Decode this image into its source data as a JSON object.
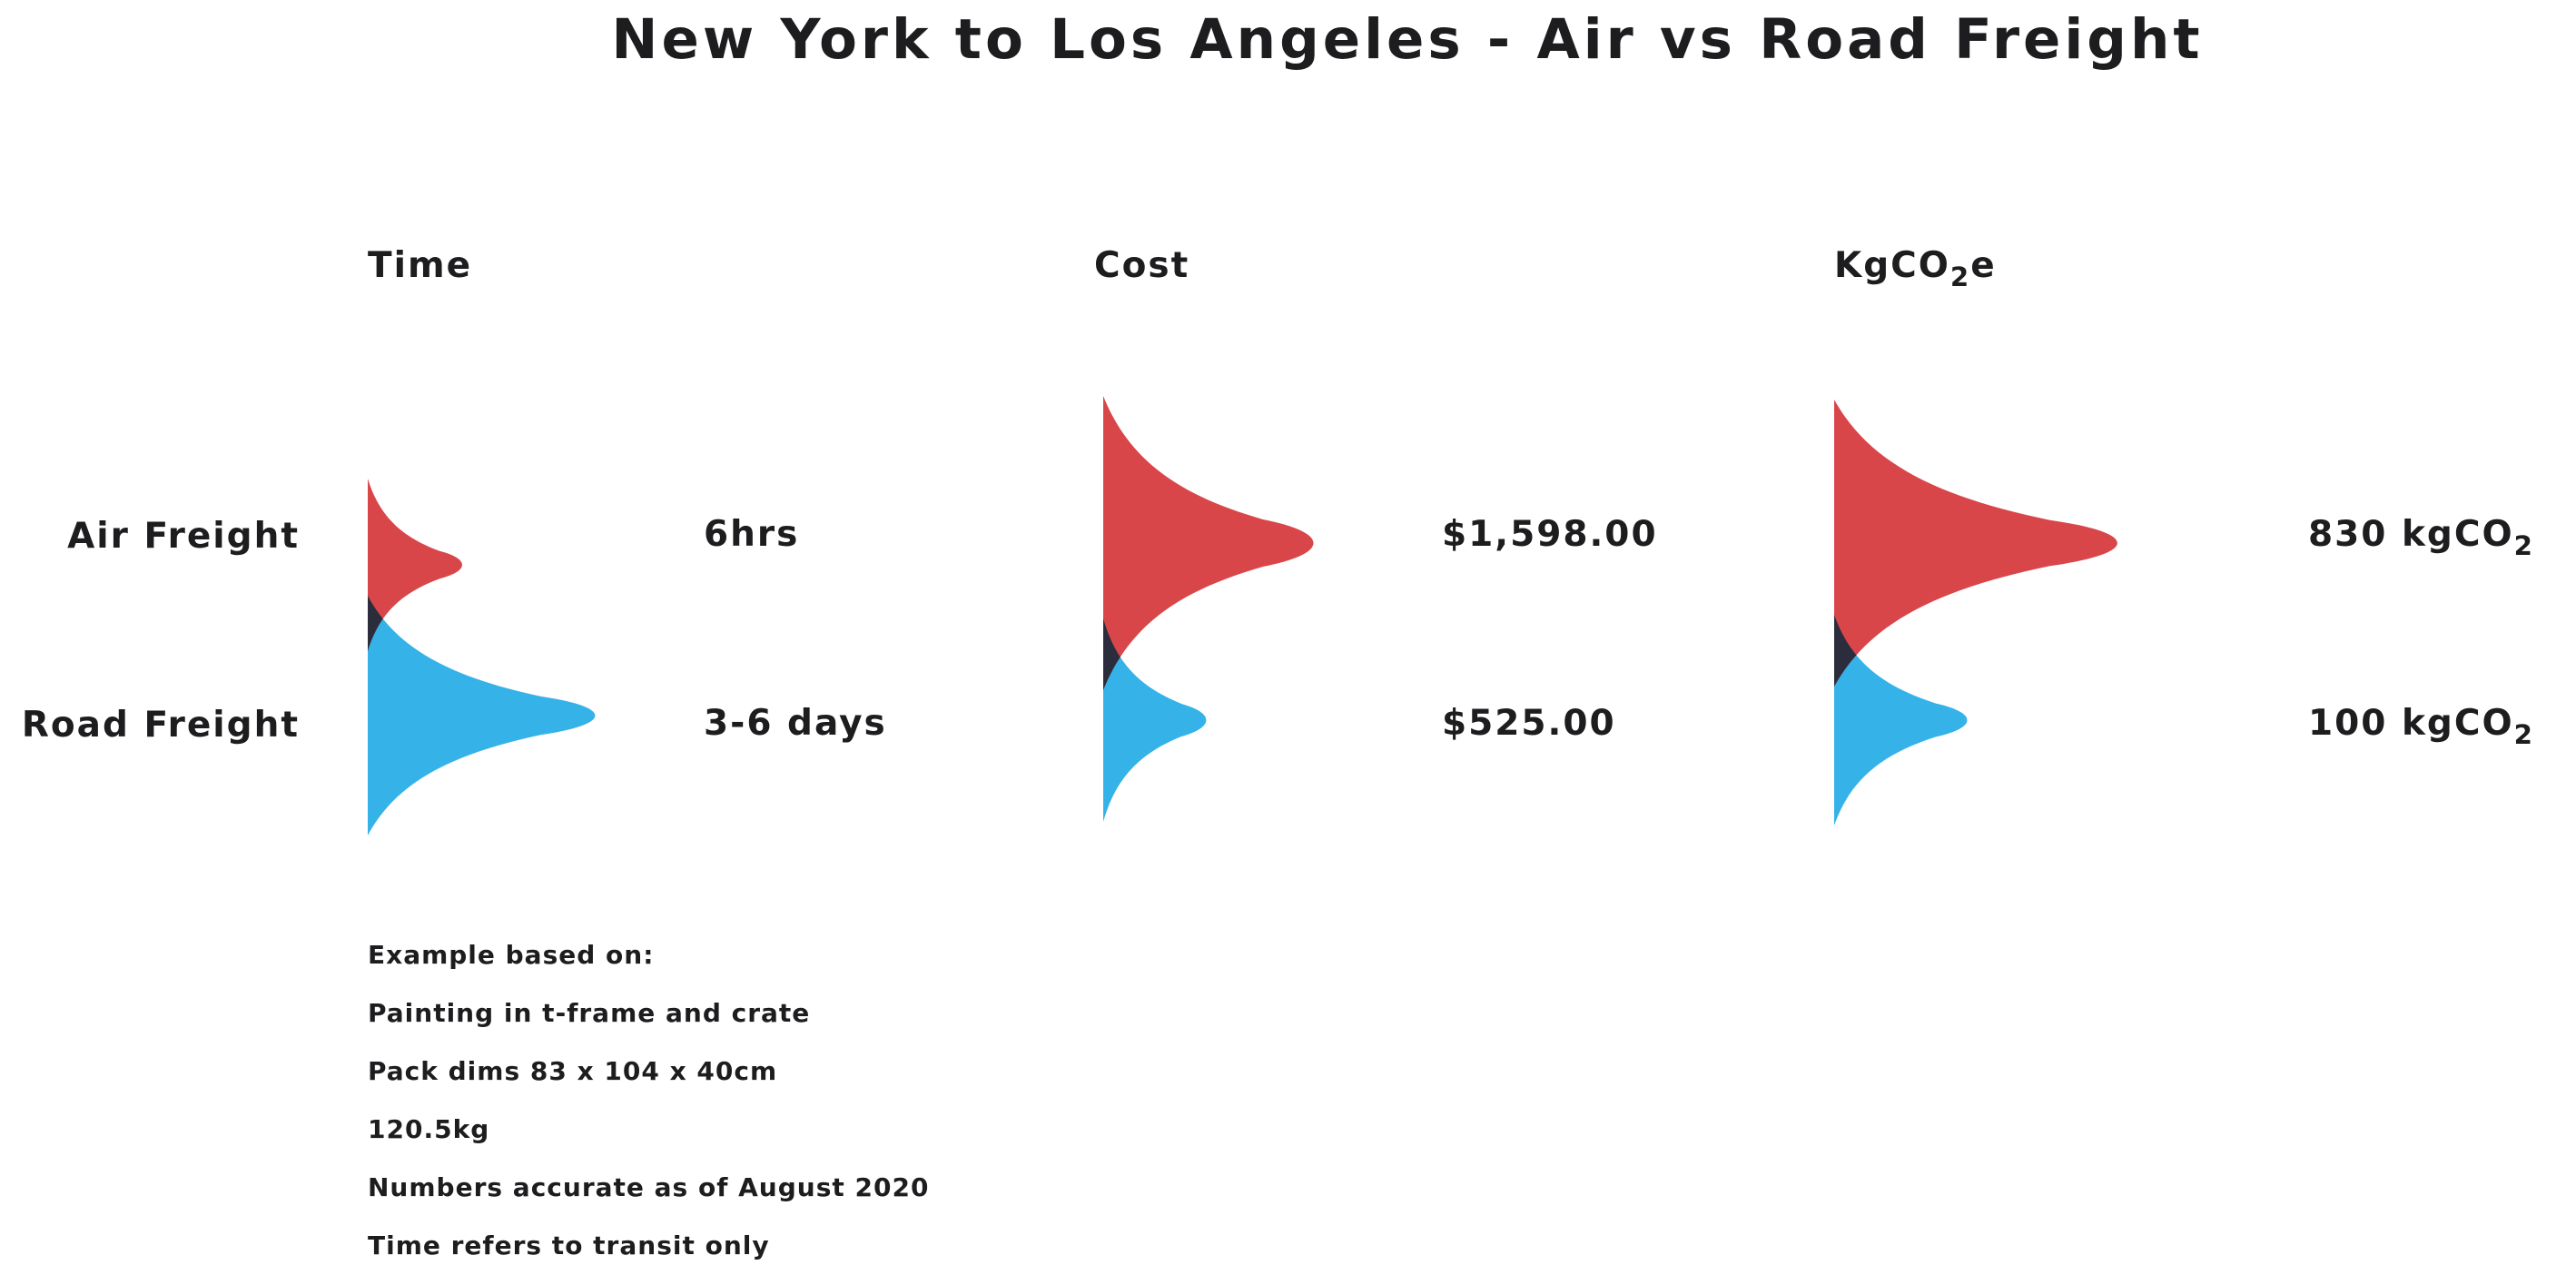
{
  "chart_data": {
    "type": "area",
    "title": "New York to Los Angeles - Air vs Road Freight",
    "rows": [
      "Air Freight",
      "Road Freight"
    ],
    "metrics": [
      {
        "label": "Time",
        "label_sub": "",
        "label_suffix": "",
        "values": [
          {
            "text": "6hrs",
            "text_sub": ""
          },
          {
            "text": "3-6 days",
            "text_sub": ""
          }
        ],
        "relative_size": [
          0.25,
          1.0
        ]
      },
      {
        "label": "Cost",
        "label_sub": "",
        "label_suffix": "",
        "values": [
          {
            "text": "$1,598.00",
            "text_sub": ""
          },
          {
            "text": "$525.00",
            "text_sub": ""
          }
        ],
        "relative_size": [
          1.0,
          0.33
        ]
      },
      {
        "label": "KgCO",
        "label_sub": "2",
        "label_suffix": "e",
        "values": [
          {
            "text": "830 kgCO",
            "text_sub": "2"
          },
          {
            "text": "100 kgCO",
            "text_sub": "2"
          }
        ],
        "relative_size": [
          1.0,
          0.12
        ]
      }
    ],
    "colors": {
      "air": "#d9464a",
      "road": "#35b2e8",
      "overlap": "#2b2d3c"
    }
  },
  "notes": [
    "Example based on:",
    "Painting in t-frame and crate",
    "Pack dims 83 x 104 x 40cm",
    "120.5kg",
    "Numbers accurate as of August 2020",
    "Time refers to transit only"
  ]
}
